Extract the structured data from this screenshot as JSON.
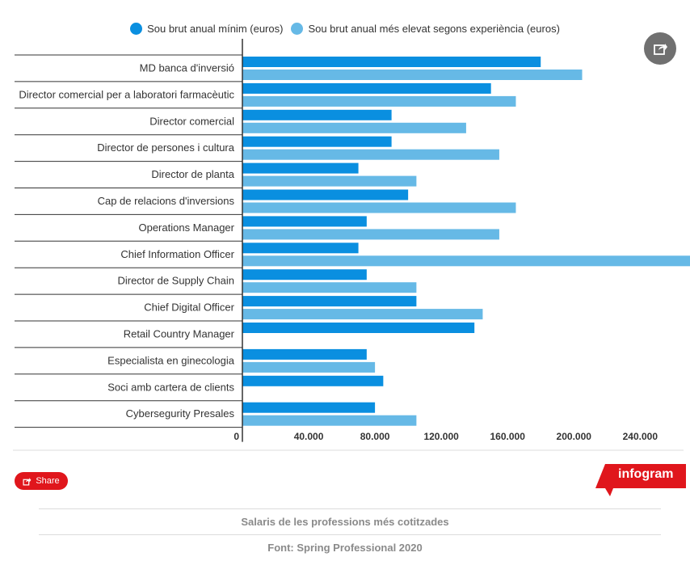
{
  "chart_data": {
    "type": "bar",
    "orientation": "horizontal",
    "categories": [
      "MD banca d'inversió",
      "Director comercial per a laboratori farmacèutic",
      "Director comercial",
      "Director de persones i cultura",
      "Director de planta",
      "Cap de relacions d'inversions",
      "Operations Manager",
      "Chief Information Officer",
      "Director de Supply Chain",
      "Chief Digital Officer",
      "Retail Country Manager",
      "Especialista en ginecologia",
      "Soci amb cartera de clients",
      "Cybersegurity Presales"
    ],
    "series": [
      {
        "name": "Sou brut anual mínim (euros)",
        "color": "#0a8fe0",
        "values": [
          180000,
          150000,
          90000,
          90000,
          70000,
          100000,
          75000,
          70000,
          75000,
          105000,
          140000,
          75000,
          85000,
          80000
        ]
      },
      {
        "name": "Sou brut anual més elevat segons experiència (euros)",
        "color": "#66b9e6",
        "values": [
          205000,
          165000,
          135000,
          155000,
          105000,
          165000,
          155000,
          275000,
          105000,
          145000,
          null,
          80000,
          null,
          105000
        ]
      }
    ],
    "xticks": [
      "0",
      "40.000",
      "80.000",
      "120.000",
      "160.000",
      "200.000",
      "240.000"
    ],
    "xtick_values": [
      0,
      40000,
      80000,
      120000,
      160000,
      200000,
      240000
    ],
    "xlim": [
      0,
      280000
    ],
    "grid": false,
    "legend_position": "top"
  },
  "ui": {
    "share_label": "Share",
    "brand": "infogram",
    "caption": "Salaris de les professions més cotitzades",
    "source": "Font: Spring Professional 2020",
    "brand_color": "#e0161c"
  }
}
